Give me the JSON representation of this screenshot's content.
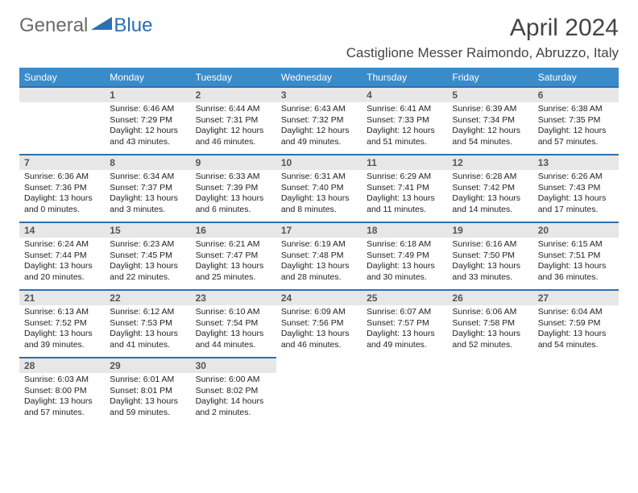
{
  "logo": {
    "general": "General",
    "blue": "Blue"
  },
  "title": "April 2024",
  "location": "Castiglione Messer Raimondo, Abruzzo, Italy",
  "colors": {
    "header_bg": "#3a8bc9",
    "row_border": "#2d6fb0",
    "daynum_bg": "#e7e7e7",
    "logo_gray": "#6a6a6a",
    "logo_blue": "#2d6fb0",
    "title_color": "#444444",
    "text_color": "#222222"
  },
  "fonts": {
    "title_pt": 30,
    "location_pt": 17,
    "th_pt": 12,
    "daynum_pt": 12,
    "body_pt": 10.5
  },
  "weekdays": [
    "Sunday",
    "Monday",
    "Tuesday",
    "Wednesday",
    "Thursday",
    "Friday",
    "Saturday"
  ],
  "weeks": [
    [
      null,
      {
        "n": "1",
        "sr": "Sunrise: 6:46 AM",
        "ss": "Sunset: 7:29 PM",
        "dl": "Daylight: 12 hours and 43 minutes."
      },
      {
        "n": "2",
        "sr": "Sunrise: 6:44 AM",
        "ss": "Sunset: 7:31 PM",
        "dl": "Daylight: 12 hours and 46 minutes."
      },
      {
        "n": "3",
        "sr": "Sunrise: 6:43 AM",
        "ss": "Sunset: 7:32 PM",
        "dl": "Daylight: 12 hours and 49 minutes."
      },
      {
        "n": "4",
        "sr": "Sunrise: 6:41 AM",
        "ss": "Sunset: 7:33 PM",
        "dl": "Daylight: 12 hours and 51 minutes."
      },
      {
        "n": "5",
        "sr": "Sunrise: 6:39 AM",
        "ss": "Sunset: 7:34 PM",
        "dl": "Daylight: 12 hours and 54 minutes."
      },
      {
        "n": "6",
        "sr": "Sunrise: 6:38 AM",
        "ss": "Sunset: 7:35 PM",
        "dl": "Daylight: 12 hours and 57 minutes."
      }
    ],
    [
      {
        "n": "7",
        "sr": "Sunrise: 6:36 AM",
        "ss": "Sunset: 7:36 PM",
        "dl": "Daylight: 13 hours and 0 minutes."
      },
      {
        "n": "8",
        "sr": "Sunrise: 6:34 AM",
        "ss": "Sunset: 7:37 PM",
        "dl": "Daylight: 13 hours and 3 minutes."
      },
      {
        "n": "9",
        "sr": "Sunrise: 6:33 AM",
        "ss": "Sunset: 7:39 PM",
        "dl": "Daylight: 13 hours and 6 minutes."
      },
      {
        "n": "10",
        "sr": "Sunrise: 6:31 AM",
        "ss": "Sunset: 7:40 PM",
        "dl": "Daylight: 13 hours and 8 minutes."
      },
      {
        "n": "11",
        "sr": "Sunrise: 6:29 AM",
        "ss": "Sunset: 7:41 PM",
        "dl": "Daylight: 13 hours and 11 minutes."
      },
      {
        "n": "12",
        "sr": "Sunrise: 6:28 AM",
        "ss": "Sunset: 7:42 PM",
        "dl": "Daylight: 13 hours and 14 minutes."
      },
      {
        "n": "13",
        "sr": "Sunrise: 6:26 AM",
        "ss": "Sunset: 7:43 PM",
        "dl": "Daylight: 13 hours and 17 minutes."
      }
    ],
    [
      {
        "n": "14",
        "sr": "Sunrise: 6:24 AM",
        "ss": "Sunset: 7:44 PM",
        "dl": "Daylight: 13 hours and 20 minutes."
      },
      {
        "n": "15",
        "sr": "Sunrise: 6:23 AM",
        "ss": "Sunset: 7:45 PM",
        "dl": "Daylight: 13 hours and 22 minutes."
      },
      {
        "n": "16",
        "sr": "Sunrise: 6:21 AM",
        "ss": "Sunset: 7:47 PM",
        "dl": "Daylight: 13 hours and 25 minutes."
      },
      {
        "n": "17",
        "sr": "Sunrise: 6:19 AM",
        "ss": "Sunset: 7:48 PM",
        "dl": "Daylight: 13 hours and 28 minutes."
      },
      {
        "n": "18",
        "sr": "Sunrise: 6:18 AM",
        "ss": "Sunset: 7:49 PM",
        "dl": "Daylight: 13 hours and 30 minutes."
      },
      {
        "n": "19",
        "sr": "Sunrise: 6:16 AM",
        "ss": "Sunset: 7:50 PM",
        "dl": "Daylight: 13 hours and 33 minutes."
      },
      {
        "n": "20",
        "sr": "Sunrise: 6:15 AM",
        "ss": "Sunset: 7:51 PM",
        "dl": "Daylight: 13 hours and 36 minutes."
      }
    ],
    [
      {
        "n": "21",
        "sr": "Sunrise: 6:13 AM",
        "ss": "Sunset: 7:52 PM",
        "dl": "Daylight: 13 hours and 39 minutes."
      },
      {
        "n": "22",
        "sr": "Sunrise: 6:12 AM",
        "ss": "Sunset: 7:53 PM",
        "dl": "Daylight: 13 hours and 41 minutes."
      },
      {
        "n": "23",
        "sr": "Sunrise: 6:10 AM",
        "ss": "Sunset: 7:54 PM",
        "dl": "Daylight: 13 hours and 44 minutes."
      },
      {
        "n": "24",
        "sr": "Sunrise: 6:09 AM",
        "ss": "Sunset: 7:56 PM",
        "dl": "Daylight: 13 hours and 46 minutes."
      },
      {
        "n": "25",
        "sr": "Sunrise: 6:07 AM",
        "ss": "Sunset: 7:57 PM",
        "dl": "Daylight: 13 hours and 49 minutes."
      },
      {
        "n": "26",
        "sr": "Sunrise: 6:06 AM",
        "ss": "Sunset: 7:58 PM",
        "dl": "Daylight: 13 hours and 52 minutes."
      },
      {
        "n": "27",
        "sr": "Sunrise: 6:04 AM",
        "ss": "Sunset: 7:59 PM",
        "dl": "Daylight: 13 hours and 54 minutes."
      }
    ],
    [
      {
        "n": "28",
        "sr": "Sunrise: 6:03 AM",
        "ss": "Sunset: 8:00 PM",
        "dl": "Daylight: 13 hours and 57 minutes."
      },
      {
        "n": "29",
        "sr": "Sunrise: 6:01 AM",
        "ss": "Sunset: 8:01 PM",
        "dl": "Daylight: 13 hours and 59 minutes."
      },
      {
        "n": "30",
        "sr": "Sunrise: 6:00 AM",
        "ss": "Sunset: 8:02 PM",
        "dl": "Daylight: 14 hours and 2 minutes."
      },
      null,
      null,
      null,
      null
    ]
  ]
}
